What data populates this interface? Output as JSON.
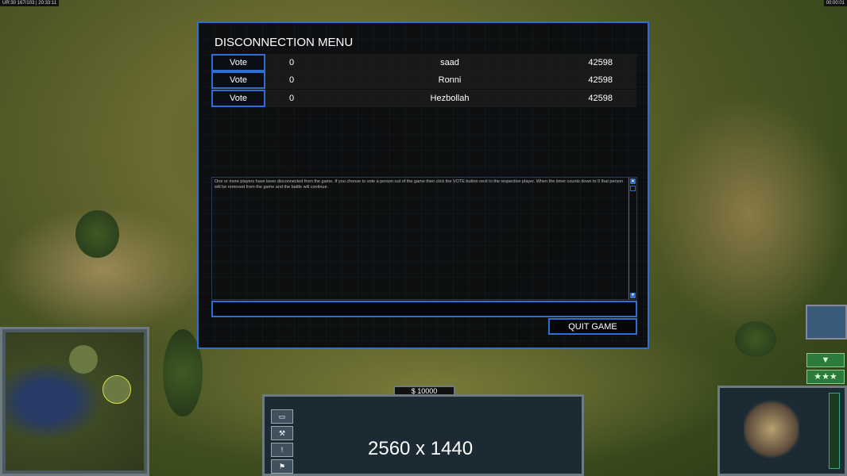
{
  "hud": {
    "top_left_status": "UR:30 167/103 | 20:33:11",
    "top_right_timer": "00:00:01",
    "money": "$ 10000",
    "resolution_text": "2560 x 1440"
  },
  "dialog": {
    "title": "DISCONNECTION MENU",
    "players": [
      {
        "vote_label": "Vote",
        "votes": "0",
        "name": "saad",
        "ping": "42598"
      },
      {
        "vote_label": "Vote",
        "votes": "0",
        "name": "Ronni",
        "ping": "42598"
      },
      {
        "vote_label": "Vote",
        "votes": "0",
        "name": "Hezbollah",
        "ping": "42598"
      }
    ],
    "message": "One or more players have been disconnected from the game. If you choose to vote a person out of the game then click the VOTE button next to the respective player. When the timer counts down to 0 that person will be removed from the game and the battle will continue.",
    "chat_value": "",
    "quit_label": "QUIT GAME"
  },
  "command_icons": [
    "window-icon",
    "wrench-icon",
    "alert-icon",
    "sign-icon"
  ],
  "side_buttons": {
    "down": "▼",
    "stars": "★★★"
  }
}
